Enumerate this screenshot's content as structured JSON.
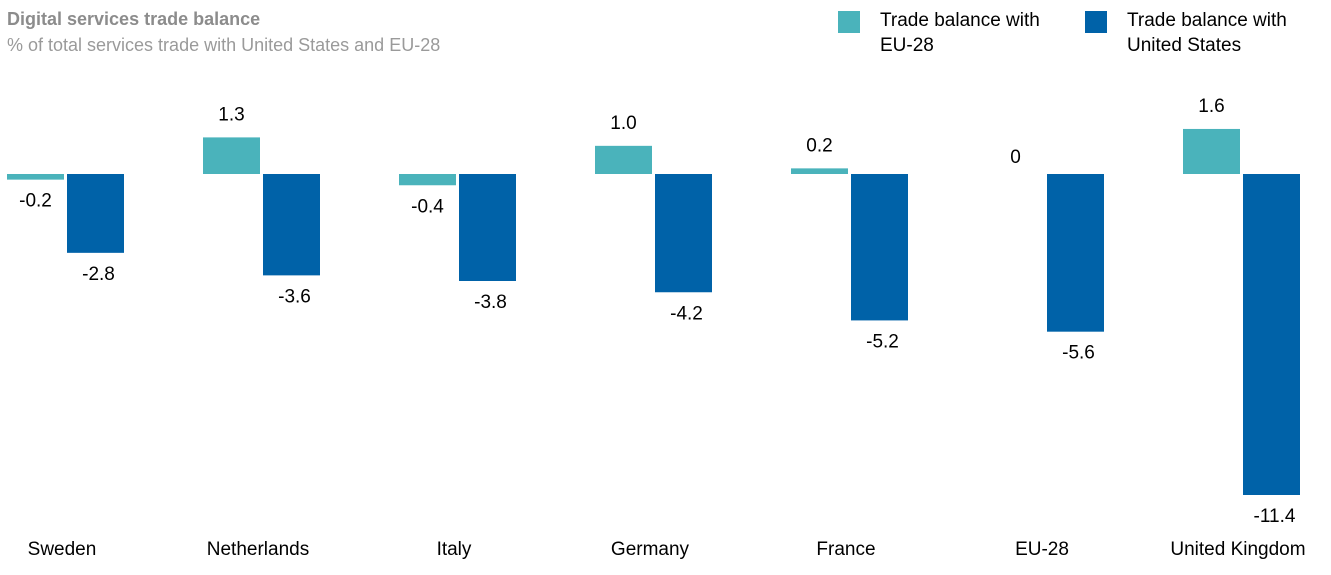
{
  "chart_data": {
    "type": "bar",
    "title": "Digital services trade balance",
    "subtitle": "% of total services trade with United States and EU-28",
    "categories": [
      "Sweden",
      "Netherlands",
      "Italy",
      "Germany",
      "France",
      "EU-28",
      "United Kingdom"
    ],
    "series": [
      {
        "name": "Trade balance with EU-28",
        "color": "#4ab3bb",
        "values": [
          -0.2,
          1.3,
          -0.4,
          1.0,
          0.2,
          0,
          1.6
        ],
        "value_labels": [
          "-0.2",
          "1.3",
          "-0.4",
          "1.0",
          "0.2",
          "0",
          "1.6"
        ]
      },
      {
        "name": "Trade balance with United States",
        "color": "#0062a8",
        "values": [
          -2.8,
          -3.6,
          -3.8,
          -4.2,
          -5.2,
          -5.6,
          -11.4
        ]
      }
    ]
  }
}
